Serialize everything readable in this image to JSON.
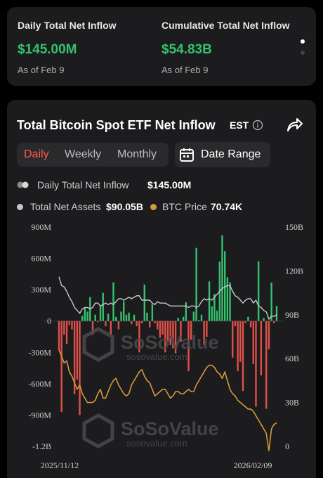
{
  "stats": {
    "daily": {
      "label": "Daily Total Net Inflow",
      "value": "$145.00M",
      "as_of": "As of Feb 9"
    },
    "cumulative": {
      "label": "Cumulative Total Net Inflow",
      "value": "$54.83B",
      "as_of": "As of Feb 9"
    }
  },
  "header": {
    "title": "Total Bitcoin Spot ETF Net Inflow",
    "timezone": "EST",
    "info_icon": "info-icon",
    "share_icon": "share-icon"
  },
  "range_tabs": [
    {
      "label": "Daily",
      "active": true
    },
    {
      "label": "Weekly",
      "active": false
    },
    {
      "label": "Monthly",
      "active": false
    }
  ],
  "date_range": {
    "label": "Date Range",
    "icon": "calendar-icon"
  },
  "legend": {
    "daily_inflow": {
      "label": "Daily Total Net Inflow",
      "value": "$145.00M"
    },
    "net_assets": {
      "label": "Total Net Assets",
      "value": "$90.05B"
    },
    "btc_price": {
      "label": "BTC Price",
      "value": "70.74K"
    }
  },
  "watermark": {
    "brand": "SoSoValue",
    "url": "sosovalue.com"
  },
  "colors": {
    "positive": "#35c26e",
    "negative": "#e0504a",
    "net_assets_line": "#c8c8c8",
    "btc_price_line": "#d49a3a",
    "accent": "#ff5a4f"
  },
  "chart_data": {
    "type": "bar",
    "title": "Total Bitcoin Spot ETF Net Inflow",
    "x_tick_labels": [
      "2025/11/12",
      "2026/02/09"
    ],
    "y_left_ticks": [
      "900M",
      "600M",
      "300M",
      "0",
      "-300M",
      "-600M",
      "-900M",
      "-1.2B"
    ],
    "y_left_range_millions": [
      -1200,
      900
    ],
    "y_right_ticks": [
      "150B",
      "120B",
      "90B",
      "60B",
      "30B",
      "0"
    ],
    "y_right_range_billions": [
      0,
      150
    ],
    "series": [
      {
        "name": "Daily Total Net Inflow",
        "unit": "USD millions",
        "values": [
          -280,
          -870,
          -130,
          -220,
          -40,
          -80,
          -700,
          -560,
          -900,
          50,
          130,
          90,
          230,
          -130,
          60,
          -10,
          150,
          270,
          -50,
          70,
          -130,
          370,
          40,
          -80,
          90,
          190,
          60,
          80,
          -30,
          60,
          -50,
          -300,
          -20,
          350,
          80,
          -60,
          160,
          -20,
          -80,
          -160,
          -130,
          -300,
          -200,
          -230,
          -260,
          -310,
          30,
          -200,
          40,
          180,
          -480,
          -180,
          90,
          700,
          10,
          60,
          -230,
          -150,
          380,
          140,
          260,
          100,
          570,
          820,
          670,
          420,
          370,
          -350,
          -50,
          -480,
          -390,
          -670,
          -20,
          40,
          -60,
          -410,
          -820,
          570,
          -520,
          30,
          -840,
          -270,
          370,
          -20,
          145
        ]
      },
      {
        "name": "Total Net Assets",
        "unit": "USD billions",
        "values": [
          116,
          110,
          109,
          106,
          102,
          99,
          95,
          93,
          91,
          94,
          95,
          95,
          94,
          95,
          98,
          98,
          96,
          97,
          98,
          97,
          98,
          97,
          99,
          101,
          101,
          100,
          101,
          102,
          101,
          102,
          103,
          103,
          100,
          100,
          100,
          100,
          98,
          97,
          99,
          98,
          98,
          98,
          97,
          96,
          96,
          96,
          96,
          96,
          96,
          96,
          95,
          96,
          96,
          95,
          96,
          99,
          101,
          100,
          101,
          100,
          102,
          104,
          106,
          108,
          109,
          110,
          110,
          106,
          103,
          102,
          100,
          98,
          100,
          101,
          101,
          98,
          100,
          96,
          95,
          93,
          92,
          87,
          89,
          89,
          90.05
        ]
      },
      {
        "name": "BTC Price",
        "unit": "USD thousands",
        "values": [
          104,
          101,
          98,
          99,
          94,
          92,
          89,
          86,
          88,
          84,
          82,
          80,
          80,
          80,
          81,
          84,
          86,
          82,
          82,
          85,
          88,
          90,
          91,
          88,
          86,
          84,
          83,
          84,
          88,
          90,
          92,
          94,
          95,
          92,
          90,
          89,
          86,
          83,
          84,
          85,
          86,
          86,
          84,
          82,
          83,
          85,
          85,
          84,
          84,
          85,
          86,
          85,
          85,
          88,
          90,
          92,
          94,
          96,
          97,
          97,
          96,
          94,
          93,
          91,
          94,
          90,
          86,
          84,
          83,
          81,
          80,
          79,
          78,
          77,
          77,
          76,
          74,
          72,
          70,
          68,
          66,
          58,
          68,
          70,
          70.74
        ]
      }
    ]
  }
}
